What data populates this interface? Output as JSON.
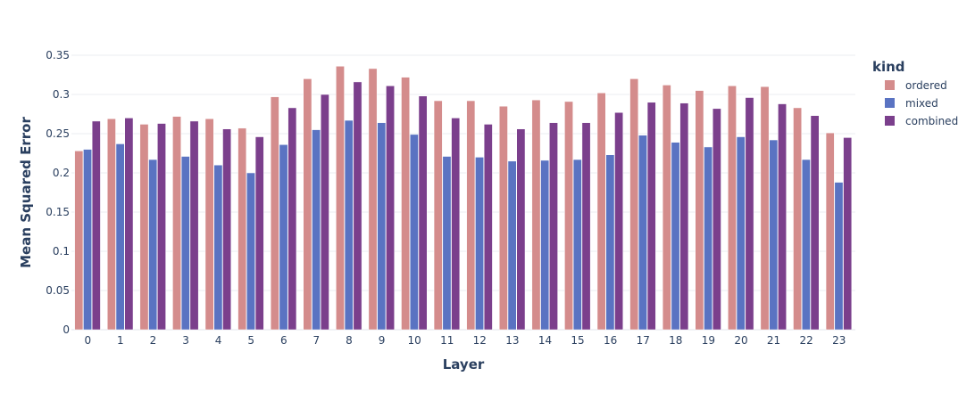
{
  "chart_data": {
    "type": "bar",
    "title": "",
    "xlabel": "Layer",
    "ylabel": "Mean Squared Error",
    "ylim": [
      0,
      0.35
    ],
    "yticks": [
      "0",
      "0.05",
      "0.1",
      "0.15",
      "0.2",
      "0.25",
      "0.3",
      "0.35"
    ],
    "grid": true,
    "legend_title": "kind",
    "legend_position": "right",
    "categories": [
      "0",
      "1",
      "2",
      "3",
      "4",
      "5",
      "6",
      "7",
      "8",
      "9",
      "10",
      "11",
      "12",
      "13",
      "14",
      "15",
      "16",
      "17",
      "18",
      "19",
      "20",
      "21",
      "22",
      "23"
    ],
    "series": [
      {
        "name": "ordered",
        "color": "#d48c8c",
        "values": [
          0.228,
          0.269,
          0.262,
          0.272,
          0.269,
          0.257,
          0.297,
          0.32,
          0.336,
          0.333,
          0.322,
          0.292,
          0.292,
          0.285,
          0.293,
          0.291,
          0.302,
          0.32,
          0.312,
          0.305,
          0.311,
          0.31,
          0.283,
          0.251
        ]
      },
      {
        "name": "mixed",
        "color": "#5a73c2",
        "values": [
          0.23,
          0.237,
          0.217,
          0.221,
          0.21,
          0.2,
          0.236,
          0.255,
          0.267,
          0.264,
          0.249,
          0.221,
          0.22,
          0.215,
          0.216,
          0.217,
          0.223,
          0.248,
          0.239,
          0.233,
          0.246,
          0.242,
          0.217,
          0.188
        ]
      },
      {
        "name": "combined",
        "color": "#7b3f8c",
        "values": [
          0.266,
          0.27,
          0.263,
          0.266,
          0.256,
          0.246,
          0.283,
          0.3,
          0.316,
          0.311,
          0.298,
          0.27,
          0.262,
          0.256,
          0.264,
          0.264,
          0.277,
          0.29,
          0.289,
          0.282,
          0.296,
          0.288,
          0.273,
          0.245
        ]
      }
    ]
  }
}
